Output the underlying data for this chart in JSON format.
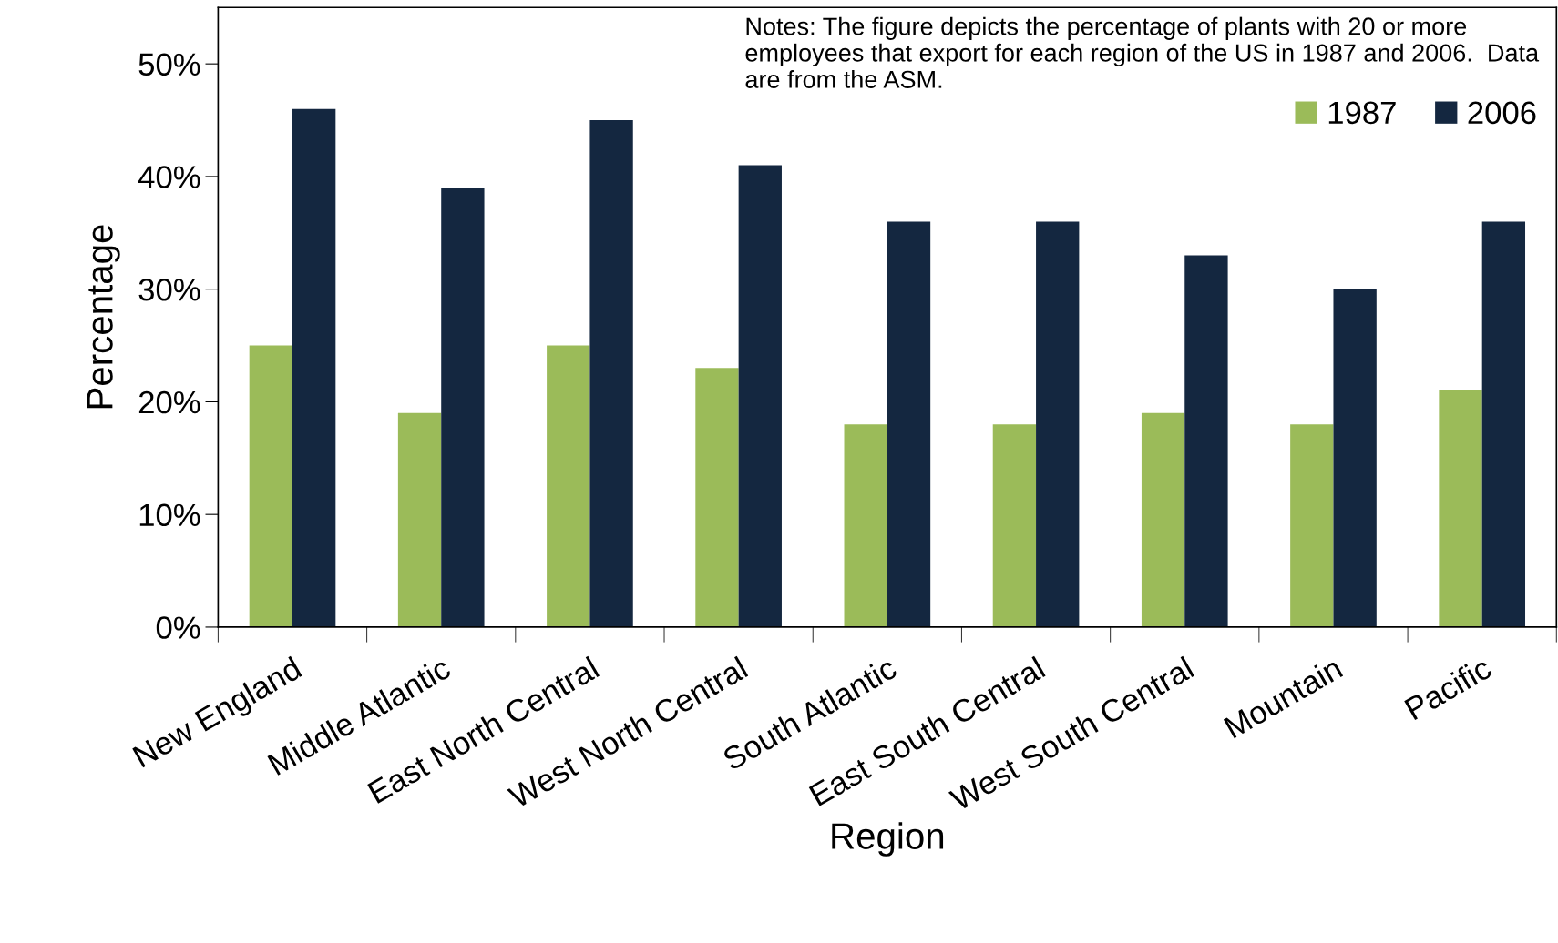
{
  "chart_data": {
    "type": "bar",
    "xlabel": "Region",
    "ylabel": "Percentage",
    "categories": [
      "New England",
      "Middle Atlantic",
      "East North Central",
      "West North Central",
      "South Atlantic",
      "East South Central",
      "West South Central",
      "Mountain",
      "Pacific"
    ],
    "series": [
      {
        "name": "1987",
        "color": "#9bbb59",
        "values": [
          25,
          19,
          25,
          23,
          18,
          18,
          19,
          18,
          21
        ]
      },
      {
        "name": "2006",
        "color": "#142740",
        "values": [
          46,
          39,
          45,
          41,
          36,
          36,
          33,
          30,
          36
        ]
      }
    ],
    "ylim": [
      0,
      55
    ],
    "yticks": [
      {
        "value": 0,
        "label": "0%"
      },
      {
        "value": 10,
        "label": "10%"
      },
      {
        "value": 20,
        "label": "20%"
      },
      {
        "value": 30,
        "label": "30%"
      },
      {
        "value": 40,
        "label": "40%"
      },
      {
        "value": 50,
        "label": "50%"
      }
    ],
    "grid": false,
    "legend": "top right",
    "annotations": [
      "Notes: The figure depicts the percentage of plants with 20 or more employees that export for each region of the US in 1987 and 2006.  Data are from the ASM."
    ]
  }
}
